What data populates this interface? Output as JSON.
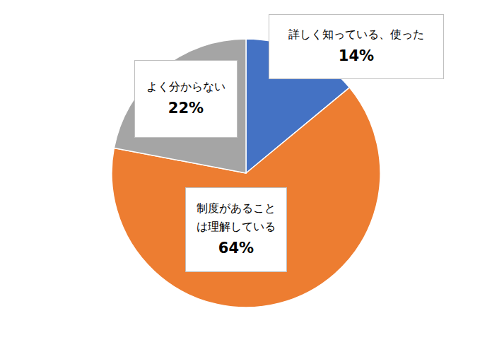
{
  "chart_data": {
    "type": "pie",
    "categories": [
      "詳しく知っている、使った",
      "制度があることは理解している",
      "よく分からない"
    ],
    "values": [
      14,
      64,
      22
    ],
    "value_labels": [
      "14%",
      "64%",
      "22%"
    ],
    "colors": [
      "#4472c4",
      "#ed7d31",
      "#a5a5a5"
    ],
    "data_labels": true
  }
}
